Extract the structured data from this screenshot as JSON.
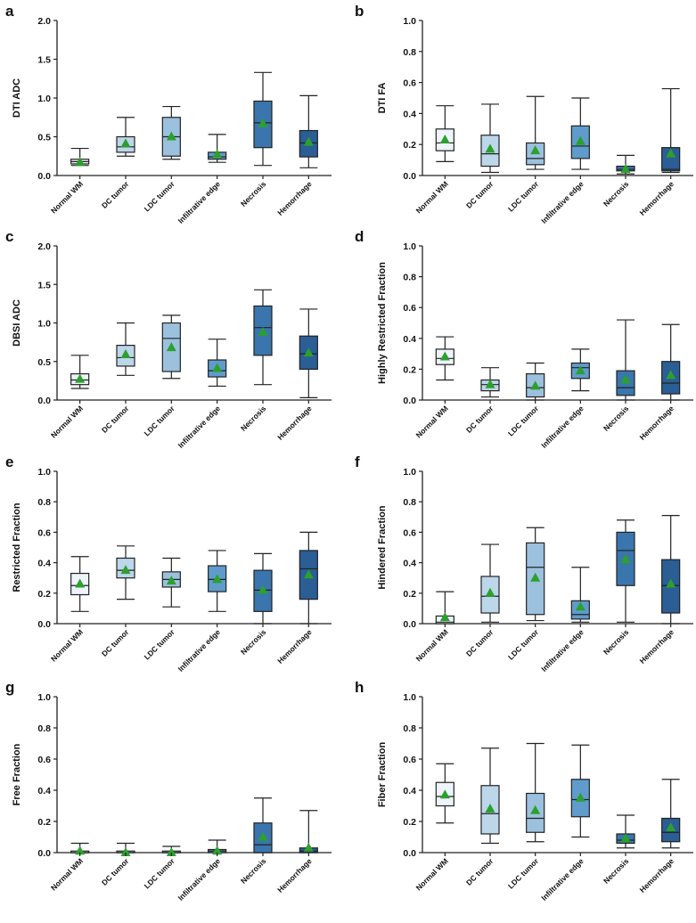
{
  "figure": {
    "categories": [
      "Normal WM",
      "DC tumor",
      "LDC tumor",
      "Infiltrative edge",
      "Necrosis",
      "Hemorrhage"
    ],
    "colors": [
      "#eef4fb",
      "#bcd6ea",
      "#9cc1df",
      "#5f9ccb",
      "#3a76ad",
      "#2a5e95"
    ],
    "mean_marker_color": "#2ca02c"
  },
  "chart_data": [
    {
      "id": "a",
      "panel_label": "a",
      "type": "box",
      "ylabel": "DTI ADC",
      "ylim": [
        0,
        2.0
      ],
      "yticks": [
        "0.0",
        "0.5",
        "1.0",
        "1.5",
        "2.0"
      ],
      "boxes": [
        {
          "min": 0.13,
          "q1": 0.15,
          "median": 0.18,
          "q3": 0.21,
          "max": 0.35,
          "mean": 0.17
        },
        {
          "min": 0.25,
          "q1": 0.3,
          "median": 0.37,
          "q3": 0.5,
          "max": 0.75,
          "mean": 0.41
        },
        {
          "min": 0.21,
          "q1": 0.25,
          "median": 0.5,
          "q3": 0.75,
          "max": 0.89,
          "mean": 0.5
        },
        {
          "min": 0.17,
          "q1": 0.21,
          "median": 0.24,
          "q3": 0.3,
          "max": 0.53,
          "mean": 0.27
        },
        {
          "min": 0.13,
          "q1": 0.36,
          "median": 0.68,
          "q3": 0.96,
          "max": 1.33,
          "mean": 0.67
        },
        {
          "min": 0.1,
          "q1": 0.24,
          "median": 0.42,
          "q3": 0.58,
          "max": 1.03,
          "mean": 0.43
        }
      ]
    },
    {
      "id": "b",
      "panel_label": "b",
      "type": "box",
      "ylabel": "DTI FA",
      "ylim": [
        0,
        1.0
      ],
      "yticks": [
        "0.0",
        "0.2",
        "0.4",
        "0.6",
        "0.8",
        "1.0"
      ],
      "boxes": [
        {
          "min": 0.09,
          "q1": 0.16,
          "median": 0.21,
          "q3": 0.3,
          "max": 0.45,
          "mean": 0.23
        },
        {
          "min": 0.02,
          "q1": 0.06,
          "median": 0.14,
          "q3": 0.26,
          "max": 0.46,
          "mean": 0.17
        },
        {
          "min": 0.04,
          "q1": 0.07,
          "median": 0.11,
          "q3": 0.21,
          "max": 0.51,
          "mean": 0.16
        },
        {
          "min": 0.04,
          "q1": 0.11,
          "median": 0.19,
          "q3": 0.32,
          "max": 0.5,
          "mean": 0.22
        },
        {
          "min": 0.01,
          "q1": 0.03,
          "median": 0.04,
          "q3": 0.06,
          "max": 0.13,
          "mean": 0.04
        },
        {
          "min": 0.02,
          "q1": 0.03,
          "median": 0.04,
          "q3": 0.18,
          "max": 0.56,
          "mean": 0.14
        }
      ]
    },
    {
      "id": "c",
      "panel_label": "c",
      "type": "box",
      "ylabel": "DBSI ADC",
      "ylim": [
        0,
        2.0
      ],
      "yticks": [
        "0.0",
        "0.5",
        "1.0",
        "1.5",
        "2.0"
      ],
      "boxes": [
        {
          "min": 0.15,
          "q1": 0.2,
          "median": 0.26,
          "q3": 0.34,
          "max": 0.58,
          "mean": 0.27
        },
        {
          "min": 0.32,
          "q1": 0.44,
          "median": 0.55,
          "q3": 0.71,
          "max": 1.0,
          "mean": 0.59
        },
        {
          "min": 0.28,
          "q1": 0.37,
          "median": 0.8,
          "q3": 1.0,
          "max": 1.1,
          "mean": 0.68
        },
        {
          "min": 0.18,
          "q1": 0.3,
          "median": 0.38,
          "q3": 0.52,
          "max": 0.79,
          "mean": 0.41
        },
        {
          "min": 0.2,
          "q1": 0.58,
          "median": 0.94,
          "q3": 1.22,
          "max": 1.43,
          "mean": 0.88
        },
        {
          "min": 0.03,
          "q1": 0.4,
          "median": 0.6,
          "q3": 0.83,
          "max": 1.18,
          "mean": 0.61
        }
      ]
    },
    {
      "id": "d",
      "panel_label": "d",
      "type": "box",
      "ylabel": "Highly Restricted Fraction",
      "ylim": [
        0,
        1.0
      ],
      "yticks": [
        "0.0",
        "0.2",
        "0.4",
        "0.6",
        "0.8",
        "1.0"
      ],
      "boxes": [
        {
          "min": 0.13,
          "q1": 0.23,
          "median": 0.27,
          "q3": 0.33,
          "max": 0.41,
          "mean": 0.28
        },
        {
          "min": 0.02,
          "q1": 0.06,
          "median": 0.1,
          "q3": 0.13,
          "max": 0.21,
          "mean": 0.1
        },
        {
          "min": 0.0,
          "q1": 0.02,
          "median": 0.08,
          "q3": 0.17,
          "max": 0.24,
          "mean": 0.09
        },
        {
          "min": 0.06,
          "q1": 0.14,
          "median": 0.21,
          "q3": 0.24,
          "max": 0.33,
          "mean": 0.19
        },
        {
          "min": 0.0,
          "q1": 0.03,
          "median": 0.08,
          "q3": 0.19,
          "max": 0.52,
          "mean": 0.13
        },
        {
          "min": 0.0,
          "q1": 0.04,
          "median": 0.11,
          "q3": 0.25,
          "max": 0.49,
          "mean": 0.16
        }
      ]
    },
    {
      "id": "e",
      "panel_label": "e",
      "type": "box",
      "ylabel": "Restricted Fraction",
      "ylim": [
        0,
        1.0
      ],
      "yticks": [
        "0.0",
        "0.2",
        "0.4",
        "0.6",
        "0.8",
        "1.0"
      ],
      "boxes": [
        {
          "min": 0.08,
          "q1": 0.19,
          "median": 0.25,
          "q3": 0.33,
          "max": 0.44,
          "mean": 0.26
        },
        {
          "min": 0.16,
          "q1": 0.3,
          "median": 0.35,
          "q3": 0.43,
          "max": 0.51,
          "mean": 0.35
        },
        {
          "min": 0.11,
          "q1": 0.24,
          "median": 0.29,
          "q3": 0.34,
          "max": 0.43,
          "mean": 0.28
        },
        {
          "min": 0.08,
          "q1": 0.21,
          "median": 0.29,
          "q3": 0.38,
          "max": 0.48,
          "mean": 0.29
        },
        {
          "min": 0.0,
          "q1": 0.08,
          "median": 0.22,
          "q3": 0.35,
          "max": 0.46,
          "mean": 0.22
        },
        {
          "min": 0.0,
          "q1": 0.16,
          "median": 0.36,
          "q3": 0.48,
          "max": 0.6,
          "mean": 0.32
        }
      ]
    },
    {
      "id": "f",
      "panel_label": "f",
      "type": "box",
      "ylabel": "Hindered Fraction",
      "ylim": [
        0,
        1.0
      ],
      "yticks": [
        "0.0",
        "0.2",
        "0.4",
        "0.6",
        "0.8",
        "1.0"
      ],
      "boxes": [
        {
          "min": 0.0,
          "q1": 0.0,
          "median": 0.01,
          "q3": 0.05,
          "max": 0.21,
          "mean": 0.04
        },
        {
          "min": 0.01,
          "q1": 0.07,
          "median": 0.18,
          "q3": 0.31,
          "max": 0.52,
          "mean": 0.2
        },
        {
          "min": 0.02,
          "q1": 0.06,
          "median": 0.37,
          "q3": 0.53,
          "max": 0.63,
          "mean": 0.3
        },
        {
          "min": 0.01,
          "q1": 0.03,
          "median": 0.06,
          "q3": 0.15,
          "max": 0.37,
          "mean": 0.11
        },
        {
          "min": 0.01,
          "q1": 0.25,
          "median": 0.48,
          "q3": 0.6,
          "max": 0.68,
          "mean": 0.42
        },
        {
          "min": 0.0,
          "q1": 0.07,
          "median": 0.25,
          "q3": 0.42,
          "max": 0.71,
          "mean": 0.26
        }
      ]
    },
    {
      "id": "g",
      "panel_label": "g",
      "type": "box",
      "ylabel": "Free Fraction",
      "ylim": [
        0,
        1.0
      ],
      "yticks": [
        "0.0",
        "0.2",
        "0.4",
        "0.6",
        "0.8",
        "1.0"
      ],
      "boxes": [
        {
          "min": 0.0,
          "q1": 0.0,
          "median": 0.0,
          "q3": 0.01,
          "max": 0.06,
          "mean": 0.01
        },
        {
          "min": 0.0,
          "q1": 0.0,
          "median": 0.0,
          "q3": 0.01,
          "max": 0.06,
          "mean": 0.0
        },
        {
          "min": 0.0,
          "q1": 0.0,
          "median": 0.0,
          "q3": 0.01,
          "max": 0.04,
          "mean": 0.0
        },
        {
          "min": 0.0,
          "q1": 0.0,
          "median": 0.01,
          "q3": 0.02,
          "max": 0.08,
          "mean": 0.01
        },
        {
          "min": 0.0,
          "q1": 0.0,
          "median": 0.05,
          "q3": 0.19,
          "max": 0.35,
          "mean": 0.1
        },
        {
          "min": 0.0,
          "q1": 0.0,
          "median": 0.01,
          "q3": 0.03,
          "max": 0.27,
          "mean": 0.03
        }
      ]
    },
    {
      "id": "h",
      "panel_label": "h",
      "type": "box",
      "ylabel": "Fiber Fraction",
      "ylim": [
        0,
        1.0
      ],
      "yticks": [
        "0.0",
        "0.2",
        "0.4",
        "0.6",
        "0.8",
        "1.0"
      ],
      "boxes": [
        {
          "min": 0.19,
          "q1": 0.3,
          "median": 0.36,
          "q3": 0.45,
          "max": 0.57,
          "mean": 0.37
        },
        {
          "min": 0.06,
          "q1": 0.12,
          "median": 0.25,
          "q3": 0.43,
          "max": 0.67,
          "mean": 0.28
        },
        {
          "min": 0.07,
          "q1": 0.13,
          "median": 0.22,
          "q3": 0.38,
          "max": 0.7,
          "mean": 0.27
        },
        {
          "min": 0.1,
          "q1": 0.23,
          "median": 0.34,
          "q3": 0.47,
          "max": 0.69,
          "mean": 0.35
        },
        {
          "min": 0.03,
          "q1": 0.06,
          "median": 0.08,
          "q3": 0.12,
          "max": 0.24,
          "mean": 0.09
        },
        {
          "min": 0.03,
          "q1": 0.07,
          "median": 0.13,
          "q3": 0.22,
          "max": 0.47,
          "mean": 0.16
        }
      ]
    }
  ]
}
